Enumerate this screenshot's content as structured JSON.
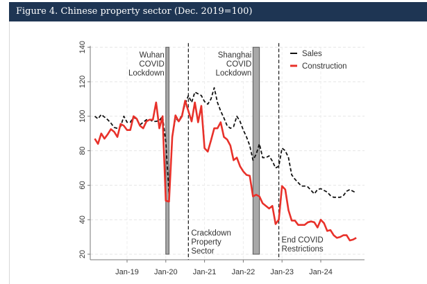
{
  "header": {
    "title": "Figure 4. Chinese property sector (Dec. 2019=100)"
  },
  "chart_data": {
    "type": "line",
    "title": "Figure 4. Chinese property sector (Dec. 2019=100)",
    "xlabel": "",
    "ylabel": "",
    "ylim": [
      20,
      140
    ],
    "yticks": [
      "20",
      "40",
      "60",
      "80",
      "100",
      "120",
      "140"
    ],
    "xticks": [
      {
        "date": "2019-01",
        "label": "Jan-19"
      },
      {
        "date": "2020-01",
        "label": "Jan-20"
      },
      {
        "date": "2021-01",
        "label": "Jan-21"
      },
      {
        "date": "2022-01",
        "label": "Jan-22"
      },
      {
        "date": "2023-01",
        "label": "Jan-23"
      },
      {
        "date": "2024-01",
        "label": "Jan-24"
      }
    ],
    "grid": true,
    "legend_placement": "top-right",
    "x": [
      "2018-03",
      "2018-04",
      "2018-05",
      "2018-06",
      "2018-07",
      "2018-08",
      "2018-09",
      "2018-10",
      "2018-11",
      "2018-12",
      "2019-01",
      "2019-02",
      "2019-03",
      "2019-04",
      "2019-05",
      "2019-06",
      "2019-07",
      "2019-08",
      "2019-09",
      "2019-10",
      "2019-11",
      "2019-12",
      "2020-01",
      "2020-02",
      "2020-03",
      "2020-04",
      "2020-05",
      "2020-06",
      "2020-07",
      "2020-08",
      "2020-09",
      "2020-10",
      "2020-11",
      "2020-12",
      "2021-01",
      "2021-02",
      "2021-03",
      "2021-04",
      "2021-05",
      "2021-06",
      "2021-07",
      "2021-08",
      "2021-09",
      "2021-10",
      "2021-11",
      "2021-12",
      "2022-01",
      "2022-02",
      "2022-03",
      "2022-04",
      "2022-05",
      "2022-06",
      "2022-07",
      "2022-08",
      "2022-09",
      "2022-10",
      "2022-11",
      "2022-12",
      "2023-01",
      "2023-02",
      "2023-03",
      "2023-04",
      "2023-05",
      "2023-06",
      "2023-07",
      "2023-08",
      "2023-09",
      "2023-10",
      "2023-11",
      "2023-12",
      "2024-01",
      "2024-02",
      "2024-03",
      "2024-04",
      "2024-05",
      "2024-06",
      "2024-07",
      "2024-08",
      "2024-09",
      "2024-10",
      "2024-11",
      "2024-12"
    ],
    "series": [
      {
        "name": "Sales",
        "color": "#111111",
        "style": "dashed",
        "values": [
          100,
          98.5,
          101,
          99.5,
          98,
          96,
          93.5,
          93,
          94,
          100,
          96.5,
          96.5,
          99.5,
          98,
          95,
          96.5,
          98,
          98,
          97,
          97,
          97.5,
          100,
          85,
          55,
          88,
          99,
          97,
          101,
          107,
          112,
          108,
          114,
          113,
          112,
          108.5,
          107,
          110,
          116.5,
          108,
          103,
          99,
          94.5,
          93,
          94,
          100,
          97,
          92,
          88,
          83,
          74.5,
          78,
          84,
          76,
          76,
          77,
          74,
          70,
          71,
          81.5,
          80,
          76,
          66,
          63.5,
          61.5,
          59.5,
          59.5,
          59,
          57,
          55,
          57.5,
          58,
          57,
          56,
          54,
          53,
          53,
          53,
          54,
          56.5,
          57.5,
          56.5,
          55.5
        ]
      },
      {
        "name": "Construction",
        "color": "#e8312a",
        "style": "solid",
        "values": [
          87,
          84,
          90,
          87,
          89.5,
          92.5,
          91,
          88,
          95.5,
          94.5,
          92,
          92,
          100,
          98.5,
          94.5,
          93,
          97,
          98,
          98,
          108,
          93,
          100,
          51,
          50.5,
          88,
          100.5,
          97,
          100,
          109,
          103,
          97,
          108,
          96.5,
          106,
          81.5,
          79.5,
          86,
          93,
          93,
          96.5,
          88,
          86.5,
          83,
          74.5,
          76,
          71,
          68,
          66,
          65.5,
          53.5,
          54.5,
          53.5,
          49.5,
          48,
          46.5,
          48,
          37.5,
          40,
          59.5,
          57.5,
          45.5,
          39.5,
          39.5,
          37,
          37,
          37,
          38.5,
          39,
          38.5,
          35.5,
          40,
          38,
          33.5,
          34,
          31,
          29.5,
          30,
          31,
          31,
          28,
          28.5,
          29.5
        ]
      }
    ],
    "shaded_periods": [
      {
        "start": "2020-01",
        "end": "2020-02",
        "label": [
          "Wuhan",
          "COVID",
          "Lockdown"
        ]
      },
      {
        "start": "2022-04",
        "end": "2022-06",
        "label": [
          "Shanghai",
          "COVID",
          "Lockdown"
        ]
      }
    ],
    "event_lines": [
      {
        "date": "2020-08",
        "label": [
          "Crackdown",
          "Property",
          "Sector"
        ]
      },
      {
        "date": "2022-12",
        "label": [
          "End COVID",
          "Restrictions"
        ]
      }
    ]
  }
}
